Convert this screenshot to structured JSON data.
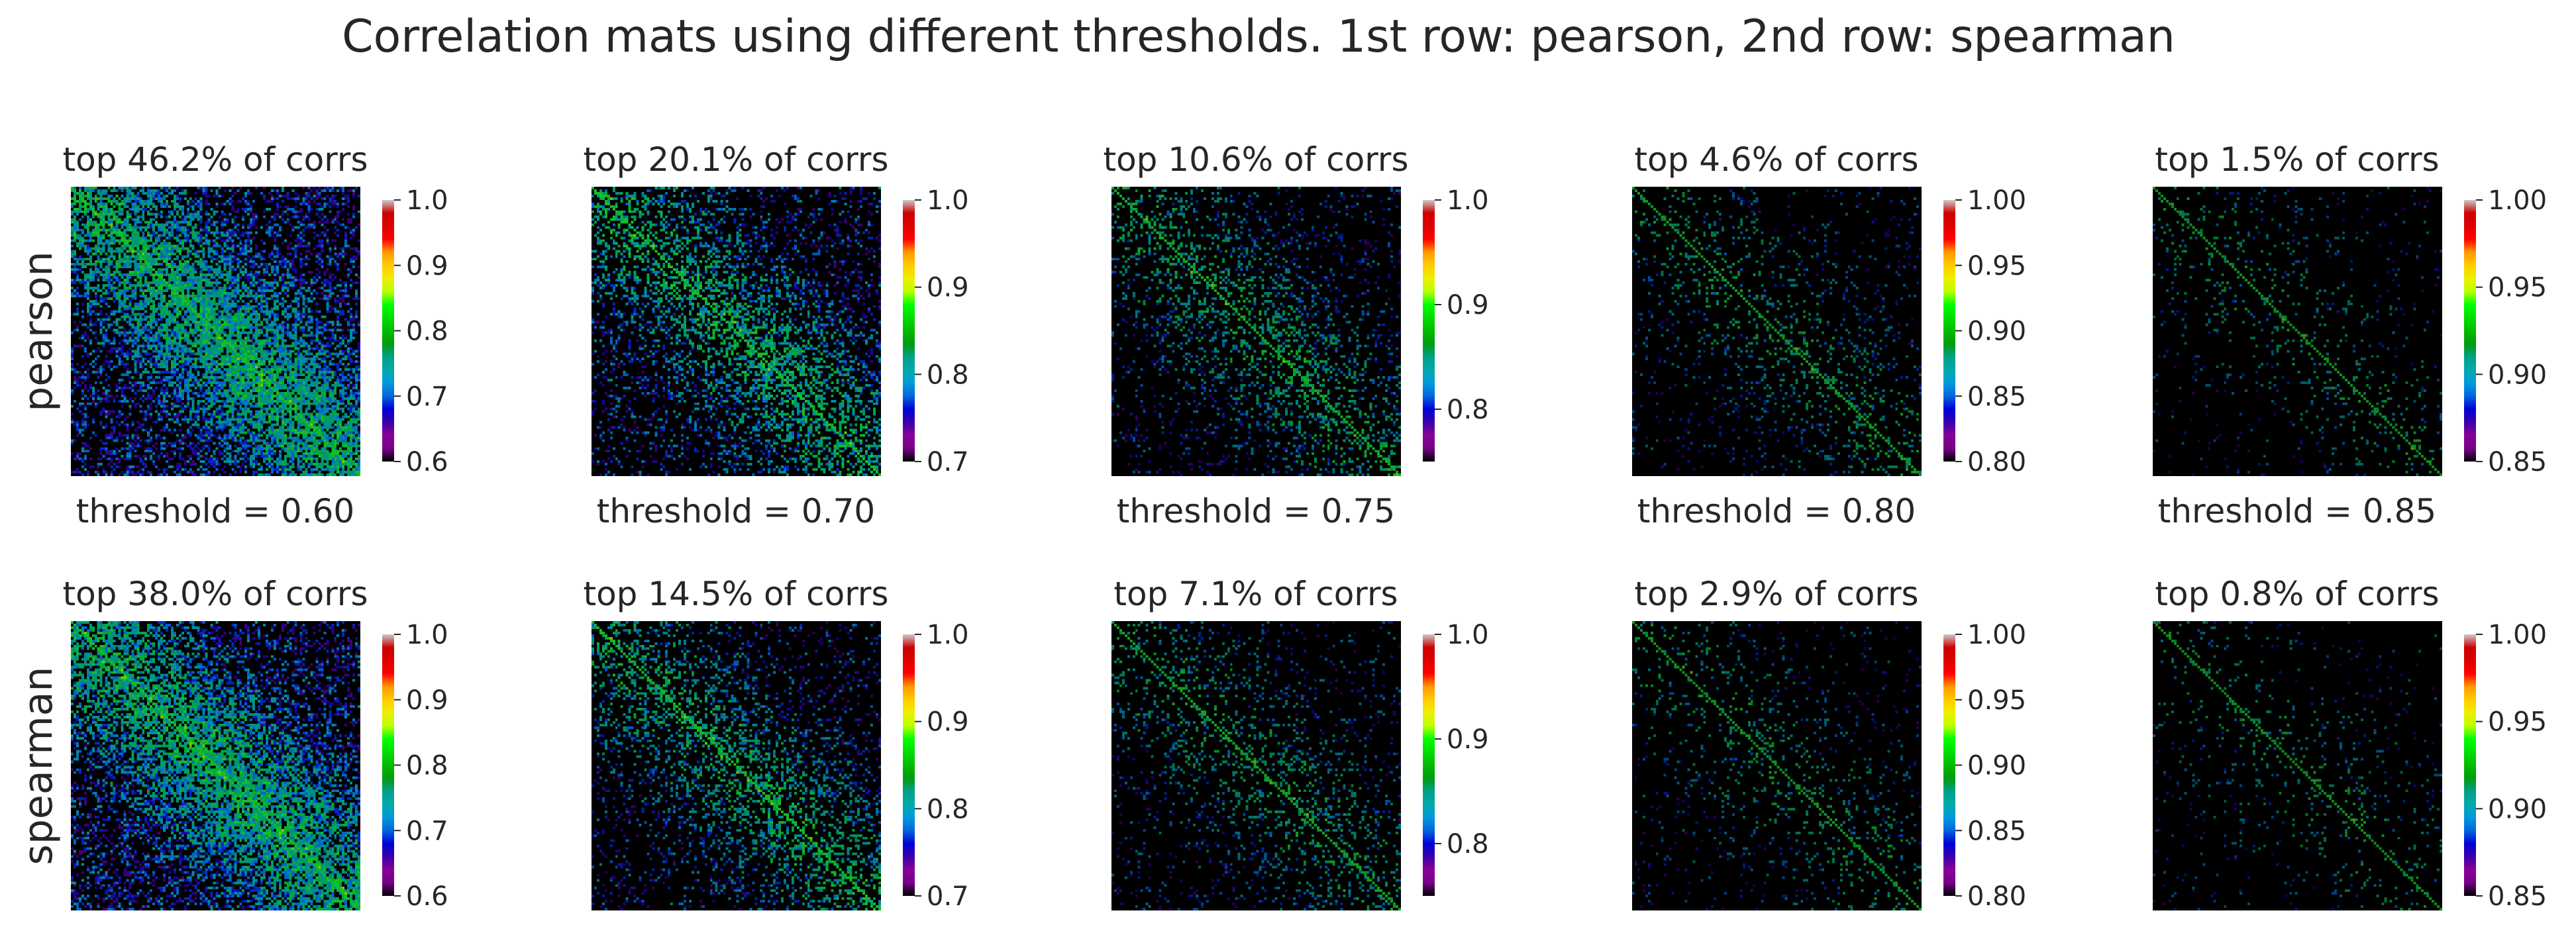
{
  "chart_data": {
    "type": "heatmap",
    "title": "Correlation mats using different thresholds.  1st row: pearson, 2nd row: spearman",
    "rows": [
      {
        "label": "pearson",
        "thresholds": [
          "threshold = 0.60",
          "threshold = 0.70",
          "threshold = 0.75",
          "threshold = 0.80",
          "threshold = 0.85"
        ],
        "panels": [
          {
            "title": "top 46.2% of corrs",
            "threshold": 0.6,
            "fraction_kept": 0.462,
            "vmin": 0.6,
            "vmax": 1.0,
            "ticks": [
              {
                "v": 0.6,
                "label": "0.6"
              },
              {
                "v": 0.7,
                "label": "0.7"
              },
              {
                "v": 0.8,
                "label": "0.8"
              },
              {
                "v": 0.9,
                "label": "0.9"
              },
              {
                "v": 1.0,
                "label": "1.0"
              }
            ]
          },
          {
            "title": "top 20.1% of corrs",
            "threshold": 0.7,
            "fraction_kept": 0.201,
            "vmin": 0.7,
            "vmax": 1.0,
            "ticks": [
              {
                "v": 0.7,
                "label": "0.7"
              },
              {
                "v": 0.8,
                "label": "0.8"
              },
              {
                "v": 0.9,
                "label": "0.9"
              },
              {
                "v": 1.0,
                "label": "1.0"
              }
            ]
          },
          {
            "title": "top 10.6% of corrs",
            "threshold": 0.75,
            "fraction_kept": 0.106,
            "vmin": 0.75,
            "vmax": 1.0,
            "ticks": [
              {
                "v": 0.8,
                "label": "0.8"
              },
              {
                "v": 0.9,
                "label": "0.9"
              },
              {
                "v": 1.0,
                "label": "1.0"
              }
            ]
          },
          {
            "title": "top 4.6% of corrs",
            "threshold": 0.8,
            "fraction_kept": 0.046,
            "vmin": 0.8,
            "vmax": 1.0,
            "ticks": [
              {
                "v": 0.8,
                "label": "0.80"
              },
              {
                "v": 0.85,
                "label": "0.85"
              },
              {
                "v": 0.9,
                "label": "0.90"
              },
              {
                "v": 0.95,
                "label": "0.95"
              },
              {
                "v": 1.0,
                "label": "1.00"
              }
            ]
          },
          {
            "title": "top 1.5% of corrs",
            "threshold": 0.85,
            "fraction_kept": 0.015,
            "vmin": 0.85,
            "vmax": 1.0,
            "ticks": [
              {
                "v": 0.85,
                "label": "0.85"
              },
              {
                "v": 0.9,
                "label": "0.90"
              },
              {
                "v": 0.95,
                "label": "0.95"
              },
              {
                "v": 1.0,
                "label": "1.00"
              }
            ]
          }
        ]
      },
      {
        "label": "spearman",
        "panels": [
          {
            "title": "top 38.0% of corrs",
            "threshold": 0.6,
            "fraction_kept": 0.38,
            "vmin": 0.6,
            "vmax": 1.0,
            "ticks": [
              {
                "v": 0.6,
                "label": "0.6"
              },
              {
                "v": 0.7,
                "label": "0.7"
              },
              {
                "v": 0.8,
                "label": "0.8"
              },
              {
                "v": 0.9,
                "label": "0.9"
              },
              {
                "v": 1.0,
                "label": "1.0"
              }
            ]
          },
          {
            "title": "top 14.5% of corrs",
            "threshold": 0.7,
            "fraction_kept": 0.145,
            "vmin": 0.7,
            "vmax": 1.0,
            "ticks": [
              {
                "v": 0.7,
                "label": "0.7"
              },
              {
                "v": 0.8,
                "label": "0.8"
              },
              {
                "v": 0.9,
                "label": "0.9"
              },
              {
                "v": 1.0,
                "label": "1.0"
              }
            ]
          },
          {
            "title": "top 7.1% of corrs",
            "threshold": 0.75,
            "fraction_kept": 0.071,
            "vmin": 0.75,
            "vmax": 1.0,
            "ticks": [
              {
                "v": 0.8,
                "label": "0.8"
              },
              {
                "v": 0.9,
                "label": "0.9"
              },
              {
                "v": 1.0,
                "label": "1.0"
              }
            ]
          },
          {
            "title": "top 2.9% of corrs",
            "threshold": 0.8,
            "fraction_kept": 0.029,
            "vmin": 0.8,
            "vmax": 1.0,
            "ticks": [
              {
                "v": 0.8,
                "label": "0.80"
              },
              {
                "v": 0.85,
                "label": "0.85"
              },
              {
                "v": 0.9,
                "label": "0.90"
              },
              {
                "v": 0.95,
                "label": "0.95"
              },
              {
                "v": 1.0,
                "label": "1.00"
              }
            ]
          },
          {
            "title": "top 0.8% of corrs",
            "threshold": 0.85,
            "fraction_kept": 0.008,
            "vmin": 0.85,
            "vmax": 1.0,
            "ticks": [
              {
                "v": 0.85,
                "label": "0.85"
              },
              {
                "v": 0.9,
                "label": "0.90"
              },
              {
                "v": 0.95,
                "label": "0.95"
              },
              {
                "v": 1.0,
                "label": "1.00"
              }
            ]
          }
        ]
      }
    ],
    "colormap": "nipy_spectral",
    "masked_color": "#000000"
  }
}
